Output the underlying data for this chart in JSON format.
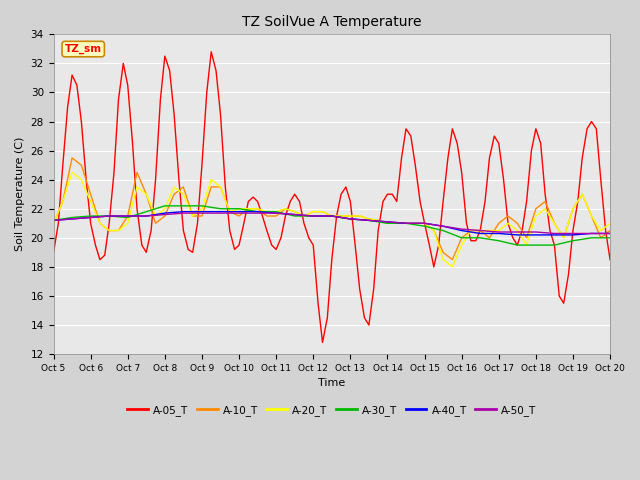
{
  "title": "TZ SoilVue A Temperature",
  "xlabel": "Time",
  "ylabel": "Soil Temperature (C)",
  "ylim": [
    12,
    34
  ],
  "xlim": [
    0,
    15
  ],
  "fig_bg": "#d3d3d3",
  "plot_bg": "#e8e8e8",
  "x_tick_labels": [
    "Oct 5",
    "Oct 6",
    "Oct 7",
    "Oct 8",
    "Oct 9",
    "Oct 10",
    "Oct 11",
    "Oct 12",
    "Oct 13",
    "Oct 14",
    "Oct 15",
    "Oct 16",
    "Oct 17",
    "Oct 18",
    "Oct 19",
    "Oct 20"
  ],
  "legend_label": "TZ_sm",
  "series_order": [
    "A-05_T",
    "A-10_T",
    "A-20_T",
    "A-30_T",
    "A-40_T",
    "A-50_T"
  ],
  "series": {
    "A-05_T": {
      "color": "#ff0000",
      "data_x": [
        0.0,
        0.13,
        0.25,
        0.38,
        0.5,
        0.63,
        0.75,
        0.88,
        1.0,
        1.13,
        1.25,
        1.38,
        1.5,
        1.63,
        1.75,
        1.88,
        2.0,
        2.13,
        2.25,
        2.38,
        2.5,
        2.63,
        2.75,
        2.88,
        3.0,
        3.13,
        3.25,
        3.38,
        3.5,
        3.63,
        3.75,
        3.88,
        4.0,
        4.13,
        4.25,
        4.38,
        4.5,
        4.63,
        4.75,
        4.88,
        5.0,
        5.13,
        5.25,
        5.38,
        5.5,
        5.63,
        5.75,
        5.88,
        6.0,
        6.13,
        6.25,
        6.38,
        6.5,
        6.63,
        6.75,
        6.88,
        7.0,
        7.13,
        7.25,
        7.38,
        7.5,
        7.63,
        7.75,
        7.88,
        8.0,
        8.13,
        8.25,
        8.38,
        8.5,
        8.63,
        8.75,
        8.88,
        9.0,
        9.13,
        9.25,
        9.38,
        9.5,
        9.63,
        9.75,
        9.88,
        10.0,
        10.13,
        10.25,
        10.38,
        10.5,
        10.63,
        10.75,
        10.88,
        11.0,
        11.13,
        11.25,
        11.38,
        11.5,
        11.63,
        11.75,
        11.88,
        12.0,
        12.13,
        12.25,
        12.38,
        12.5,
        12.63,
        12.75,
        12.88,
        13.0,
        13.13,
        13.25,
        13.38,
        13.5,
        13.63,
        13.75,
        13.88,
        14.0,
        14.13,
        14.25,
        14.38,
        14.5,
        14.63,
        14.75,
        14.88,
        15.0
      ],
      "data_y": [
        19.0,
        21.0,
        25.0,
        29.0,
        31.2,
        30.5,
        28.0,
        24.0,
        21.0,
        19.5,
        18.5,
        18.8,
        21.0,
        24.5,
        29.5,
        32.0,
        30.5,
        26.5,
        22.0,
        19.5,
        19.0,
        20.5,
        24.0,
        29.5,
        32.5,
        31.5,
        28.5,
        24.0,
        20.5,
        19.2,
        19.0,
        21.0,
        25.0,
        30.0,
        32.8,
        31.5,
        28.5,
        23.5,
        20.5,
        19.2,
        19.5,
        21.0,
        22.5,
        22.8,
        22.5,
        21.5,
        20.5,
        19.5,
        19.2,
        20.0,
        21.5,
        22.5,
        23.0,
        22.5,
        21.0,
        20.0,
        19.5,
        15.5,
        12.8,
        14.5,
        18.5,
        21.5,
        23.0,
        23.5,
        22.5,
        19.5,
        16.5,
        14.5,
        14.0,
        16.5,
        20.5,
        22.5,
        23.0,
        23.0,
        22.5,
        25.5,
        27.5,
        27.0,
        25.0,
        22.5,
        21.0,
        19.5,
        18.0,
        19.5,
        22.5,
        25.5,
        27.5,
        26.5,
        24.5,
        21.0,
        19.8,
        19.8,
        20.5,
        22.5,
        25.5,
        27.0,
        26.5,
        24.0,
        21.0,
        20.0,
        19.5,
        20.5,
        22.5,
        26.0,
        27.5,
        26.5,
        23.0,
        20.5,
        19.5,
        16.0,
        15.5,
        17.5,
        20.5,
        22.5,
        25.5,
        27.5,
        28.0,
        27.5,
        24.0,
        20.5,
        18.5
      ]
    },
    "A-10_T": {
      "color": "#ff8c00",
      "data_x": [
        0.0,
        0.25,
        0.5,
        0.75,
        1.0,
        1.25,
        1.5,
        1.75,
        2.0,
        2.25,
        2.5,
        2.75,
        3.0,
        3.25,
        3.5,
        3.75,
        4.0,
        4.25,
        4.5,
        4.75,
        5.0,
        5.25,
        5.5,
        5.75,
        6.0,
        6.25,
        6.5,
        6.75,
        7.0,
        7.25,
        7.5,
        7.75,
        8.0,
        8.25,
        8.5,
        8.75,
        9.0,
        9.25,
        9.5,
        9.75,
        10.0,
        10.25,
        10.5,
        10.75,
        11.0,
        11.25,
        11.5,
        11.75,
        12.0,
        12.25,
        12.5,
        12.75,
        13.0,
        13.25,
        13.5,
        13.75,
        14.0,
        14.25,
        14.5,
        14.75,
        15.0
      ],
      "data_y": [
        21.0,
        22.5,
        25.5,
        25.0,
        23.0,
        21.0,
        20.5,
        20.5,
        21.5,
        24.5,
        23.0,
        21.0,
        21.5,
        23.0,
        23.5,
        21.5,
        21.5,
        23.5,
        23.5,
        21.8,
        21.5,
        22.0,
        22.0,
        21.5,
        21.5,
        22.0,
        21.8,
        21.5,
        21.8,
        21.8,
        21.5,
        21.5,
        21.5,
        21.5,
        21.3,
        21.2,
        21.0,
        21.0,
        21.0,
        21.0,
        21.0,
        20.5,
        19.0,
        18.5,
        20.0,
        20.5,
        20.5,
        20.0,
        21.0,
        21.5,
        21.0,
        20.0,
        22.0,
        22.5,
        21.0,
        20.0,
        22.0,
        23.0,
        21.5,
        20.0,
        20.5
      ]
    },
    "A-20_T": {
      "color": "#ffff00",
      "data_x": [
        0.0,
        0.25,
        0.5,
        0.75,
        1.0,
        1.25,
        1.5,
        1.75,
        2.0,
        2.25,
        2.5,
        2.75,
        3.0,
        3.25,
        3.5,
        3.75,
        4.0,
        4.25,
        4.5,
        4.75,
        5.0,
        5.25,
        5.5,
        5.75,
        6.0,
        6.25,
        6.5,
        6.75,
        7.0,
        7.25,
        7.5,
        7.75,
        8.0,
        8.25,
        8.5,
        8.75,
        9.0,
        9.25,
        9.5,
        9.75,
        10.0,
        10.25,
        10.5,
        10.75,
        11.0,
        11.25,
        11.5,
        11.75,
        12.0,
        12.25,
        12.5,
        12.75,
        13.0,
        13.25,
        13.5,
        13.75,
        14.0,
        14.25,
        14.5,
        14.75,
        15.0
      ],
      "data_y": [
        21.0,
        22.5,
        24.5,
        24.0,
        22.5,
        21.0,
        20.5,
        20.5,
        21.0,
        23.5,
        23.0,
        21.5,
        22.0,
        23.5,
        23.0,
        21.5,
        22.0,
        24.0,
        23.5,
        21.8,
        22.0,
        22.0,
        22.0,
        21.8,
        21.8,
        22.0,
        21.8,
        21.5,
        21.8,
        21.8,
        21.5,
        21.5,
        21.5,
        21.5,
        21.3,
        21.2,
        21.0,
        21.0,
        21.0,
        21.0,
        21.0,
        20.5,
        18.5,
        18.0,
        19.5,
        20.5,
        20.5,
        20.5,
        20.5,
        21.0,
        20.5,
        19.5,
        21.5,
        22.0,
        21.0,
        20.0,
        22.0,
        23.0,
        21.5,
        20.5,
        21.0
      ]
    },
    "A-30_T": {
      "color": "#00bb00",
      "data_x": [
        0.0,
        0.5,
        1.0,
        1.5,
        2.0,
        2.5,
        3.0,
        3.5,
        4.0,
        4.5,
        5.0,
        5.5,
        6.0,
        6.5,
        7.0,
        7.5,
        8.0,
        8.5,
        9.0,
        9.5,
        10.0,
        10.5,
        11.0,
        11.5,
        12.0,
        12.5,
        13.0,
        13.5,
        14.0,
        14.5,
        15.0
      ],
      "data_y": [
        21.2,
        21.4,
        21.5,
        21.5,
        21.4,
        21.8,
        22.2,
        22.2,
        22.2,
        22.0,
        22.0,
        21.8,
        21.8,
        21.5,
        21.5,
        21.5,
        21.3,
        21.2,
        21.0,
        21.0,
        20.8,
        20.5,
        20.0,
        20.0,
        19.8,
        19.5,
        19.5,
        19.5,
        19.8,
        20.0,
        20.0
      ]
    },
    "A-40_T": {
      "color": "#0000ff",
      "data_x": [
        0.0,
        0.5,
        1.0,
        1.5,
        2.0,
        2.5,
        3.0,
        3.5,
        4.0,
        4.5,
        5.0,
        5.5,
        6.0,
        6.5,
        7.0,
        7.5,
        8.0,
        8.5,
        9.0,
        9.5,
        10.0,
        10.5,
        11.0,
        11.5,
        12.0,
        12.5,
        13.0,
        13.5,
        14.0,
        14.5,
        15.0
      ],
      "data_y": [
        21.2,
        21.3,
        21.4,
        21.5,
        21.5,
        21.5,
        21.7,
        21.8,
        21.8,
        21.8,
        21.8,
        21.8,
        21.7,
        21.6,
        21.5,
        21.5,
        21.3,
        21.2,
        21.1,
        21.0,
        21.0,
        20.8,
        20.5,
        20.3,
        20.3,
        20.2,
        20.2,
        20.2,
        20.2,
        20.3,
        20.3
      ]
    },
    "A-50_T": {
      "color": "#aa00aa",
      "data_x": [
        0.0,
        0.5,
        1.0,
        1.5,
        2.0,
        2.5,
        3.0,
        3.5,
        4.0,
        4.5,
        5.0,
        5.5,
        6.0,
        6.5,
        7.0,
        7.5,
        8.0,
        8.5,
        9.0,
        9.5,
        10.0,
        10.5,
        11.0,
        11.5,
        12.0,
        12.5,
        13.0,
        13.5,
        14.0,
        14.5,
        15.0
      ],
      "data_y": [
        21.2,
        21.3,
        21.4,
        21.5,
        21.5,
        21.5,
        21.6,
        21.7,
        21.7,
        21.7,
        21.7,
        21.7,
        21.7,
        21.6,
        21.5,
        21.5,
        21.3,
        21.2,
        21.1,
        21.0,
        21.0,
        20.8,
        20.6,
        20.5,
        20.4,
        20.4,
        20.4,
        20.3,
        20.3,
        20.3,
        20.3
      ]
    }
  }
}
